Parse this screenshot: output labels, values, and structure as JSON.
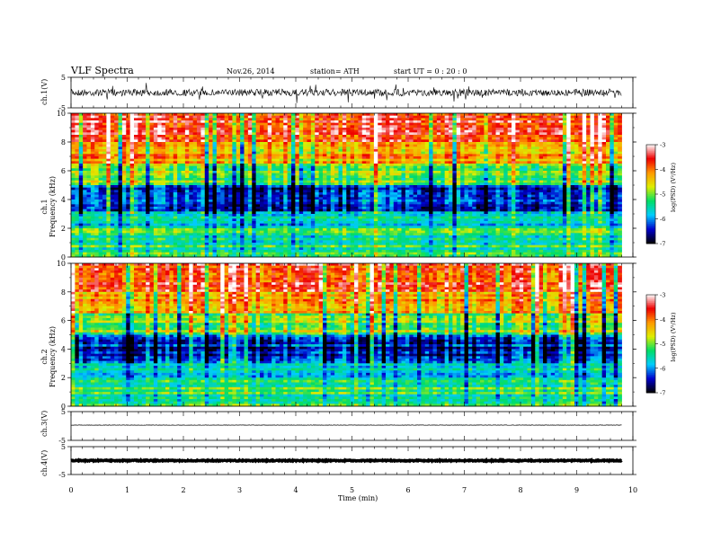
{
  "header": {
    "title": "VLF  Spectra",
    "date": "Nov.26, 2014",
    "station": "station= ATH",
    "start": "start  UT  =    0  : 20 : 0"
  },
  "chart_data": [
    {
      "type": "line",
      "panel": "ch1-waveform",
      "ylabel": "ch.1(V)",
      "ylim": [
        -5,
        5
      ],
      "yticks": [
        "5",
        "-5"
      ],
      "trace_level": 0.0,
      "trace_spread": 0.9
    },
    {
      "type": "heatmap",
      "panel": "ch1-spectrogram",
      "ylabel": "ch.1\nFrequency  (kHz)",
      "ylim": [
        0,
        10
      ],
      "yticks": [
        "0",
        "2",
        "4",
        "6",
        "8",
        "10"
      ],
      "colorbar": {
        "label": "log(PSD) (V²/Hz)",
        "range": [
          -7,
          -3
        ],
        "ticks": [
          "-3",
          "-4",
          "-5",
          "-6",
          "-7"
        ],
        "colors": [
          "#000000",
          "#0000cc",
          "#00ccff",
          "#00dd66",
          "#ddee00",
          "#ff9900",
          "#ee0000",
          "#ffffff"
        ]
      },
      "bands": [
        {
          "from": 8.0,
          "to": 10.0,
          "level": -3.6
        },
        {
          "from": 6.5,
          "to": 8.0,
          "level": -4.2
        },
        {
          "from": 5.0,
          "to": 6.5,
          "level": -5.0
        },
        {
          "from": 3.2,
          "to": 5.0,
          "level": -6.4
        },
        {
          "from": 2.0,
          "to": 3.2,
          "level": -5.7
        },
        {
          "from": 0.0,
          "to": 2.0,
          "level": -5.3
        }
      ]
    },
    {
      "type": "heatmap",
      "panel": "ch2-spectrogram",
      "ylabel": "ch.2\nFrequency  (kHz)",
      "ylim": [
        0,
        10
      ],
      "yticks": [
        "0",
        "2",
        "4",
        "6",
        "8",
        "10"
      ],
      "colorbar": {
        "label": "log(PSD) (V²/Hz)",
        "range": [
          -7,
          -3
        ],
        "ticks": [
          "-3",
          "-4",
          "-5",
          "-6",
          "-7"
        ],
        "colors": [
          "#000000",
          "#0000cc",
          "#00ccff",
          "#00dd66",
          "#ddee00",
          "#ff9900",
          "#ee0000",
          "#ffffff"
        ]
      },
      "bands": [
        {
          "from": 8.0,
          "to": 10.0,
          "level": -3.7
        },
        {
          "from": 6.5,
          "to": 8.0,
          "level": -4.2
        },
        {
          "from": 5.0,
          "to": 6.5,
          "level": -5.0
        },
        {
          "from": 3.0,
          "to": 5.0,
          "level": -6.4
        },
        {
          "from": 2.0,
          "to": 3.0,
          "level": -5.6
        },
        {
          "from": 0.0,
          "to": 2.0,
          "level": -5.3
        }
      ]
    },
    {
      "type": "line",
      "panel": "ch3-waveform",
      "ylabel": "ch.3(V)",
      "ylim": [
        -5,
        5
      ],
      "yticks": [
        "5",
        "-5"
      ],
      "trace_level": 0.3,
      "trace_spread": 0.05
    },
    {
      "type": "line",
      "panel": "ch4-waveform",
      "ylabel": "ch.4(V)",
      "ylim": [
        -5,
        5
      ],
      "yticks": [
        "5",
        "-5"
      ],
      "trace_level": 0.0,
      "trace_spread": 0.15
    }
  ],
  "xaxis": {
    "label": "Time  (min)",
    "xlim": [
      0,
      10
    ],
    "data_end": 9.8,
    "ticks": [
      "0",
      "1",
      "2",
      "3",
      "4",
      "5",
      "6",
      "7",
      "8",
      "9",
      "10"
    ]
  }
}
